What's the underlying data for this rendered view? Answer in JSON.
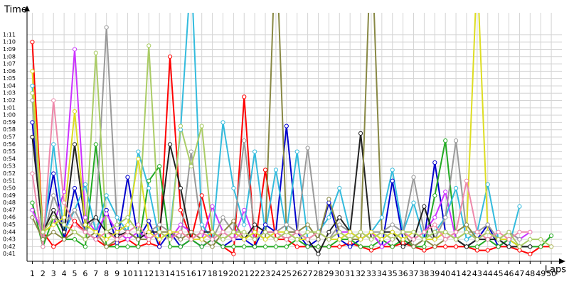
{
  "chart_data": {
    "type": "line",
    "y_label": "Time",
    "x_label": "Laps",
    "grid": true,
    "x": [
      1,
      2,
      3,
      4,
      5,
      6,
      7,
      8,
      9,
      10,
      11,
      12,
      13,
      14,
      15,
      16,
      17,
      18,
      19,
      20,
      21,
      22,
      23,
      24,
      25,
      26,
      27,
      28,
      29,
      30,
      31,
      32,
      33,
      34,
      35,
      36,
      37,
      38,
      39,
      40,
      41,
      42,
      43,
      44,
      45,
      46,
      47,
      48,
      49,
      50
    ],
    "xlim": [
      0.5,
      51
    ],
    "xticks": [
      1,
      2,
      3,
      4,
      5,
      6,
      7,
      8,
      9,
      10,
      11,
      12,
      13,
      14,
      15,
      16,
      17,
      18,
      19,
      20,
      21,
      22,
      23,
      24,
      25,
      26,
      27,
      28,
      29,
      30,
      31,
      32,
      33,
      34,
      35,
      36,
      37,
      38,
      39,
      40,
      41,
      42,
      43,
      44,
      45,
      46,
      47,
      48,
      49,
      50
    ],
    "ylim": [
      40,
      74
    ],
    "yticks": [
      {
        "value": 41,
        "label": "0:41"
      },
      {
        "value": 42,
        "label": "0:42"
      },
      {
        "value": 43,
        "label": "0:43"
      },
      {
        "value": 44,
        "label": "0:44"
      },
      {
        "value": 45,
        "label": "0:45"
      },
      {
        "value": 46,
        "label": "0:46"
      },
      {
        "value": 47,
        "label": "0:47"
      },
      {
        "value": 48,
        "label": "0:48"
      },
      {
        "value": 49,
        "label": "0:49"
      },
      {
        "value": 50,
        "label": "0:50"
      },
      {
        "value": 51,
        "label": "0:51"
      },
      {
        "value": 52,
        "label": "0:52"
      },
      {
        "value": 53,
        "label": "0:53"
      },
      {
        "value": 54,
        "label": "0:54"
      },
      {
        "value": 55,
        "label": "0:55"
      },
      {
        "value": 56,
        "label": "0:56"
      },
      {
        "value": 57,
        "label": "0:57"
      },
      {
        "value": 58,
        "label": "0:58"
      },
      {
        "value": 59,
        "label": "0:59"
      },
      {
        "value": 60,
        "label": "1:00"
      },
      {
        "value": 61,
        "label": "1:01"
      },
      {
        "value": 62,
        "label": "1:02"
      },
      {
        "value": 63,
        "label": "1:03"
      },
      {
        "value": 64,
        "label": "1:04"
      },
      {
        "value": 65,
        "label": "1:05"
      },
      {
        "value": 66,
        "label": "1:06"
      },
      {
        "value": 67,
        "label": "1:07"
      },
      {
        "value": 68,
        "label": "1:08"
      },
      {
        "value": 69,
        "label": "1:09"
      },
      {
        "value": 70,
        "label": "1:10"
      },
      {
        "value": 71,
        "label": "1:11"
      }
    ],
    "series": [
      {
        "color": "#ff0000",
        "values": [
          70,
          44,
          42,
          43,
          45.5,
          44,
          43,
          42,
          42.5,
          43,
          42,
          42.5,
          42,
          68,
          47,
          43,
          49,
          43,
          42,
          41,
          62.5,
          42,
          52.5,
          43,
          43,
          42,
          42,
          42,
          42,
          42,
          42.5,
          42,
          41.5,
          42,
          42,
          42.5,
          42,
          41.5,
          42,
          42,
          42,
          42,
          41.5,
          41.5,
          42,
          42,
          41.5,
          41,
          42,
          42
        ]
      },
      {
        "color": "#0000cc",
        "values": [
          59,
          44,
          52,
          43,
          50,
          44,
          43,
          47,
          42.5,
          51.5,
          43,
          45.5,
          42,
          44,
          42,
          43,
          42,
          43,
          42,
          43,
          43,
          42,
          45,
          44,
          58.5,
          44,
          42,
          43,
          48,
          43,
          42,
          43,
          44,
          42,
          51,
          43,
          42,
          43,
          53.5,
          44,
          43,
          42,
          43,
          45,
          42,
          43,
          42,
          42,
          null,
          null
        ]
      },
      {
        "color": "#22aa22",
        "values": [
          48,
          42,
          46,
          43,
          43,
          42,
          56,
          42,
          42,
          42,
          42,
          51,
          53,
          42,
          42,
          43,
          42,
          43,
          42,
          42,
          42,
          42,
          42,
          42,
          42,
          43,
          42,
          42,
          42,
          43,
          43,
          42,
          42,
          43,
          42,
          43,
          42,
          42,
          49,
          56.5,
          43,
          42,
          42,
          43,
          42,
          43,
          42,
          42,
          42,
          43.5
        ]
      },
      {
        "color": "#cc33ff",
        "values": [
          47,
          44,
          45,
          49.5,
          69,
          46,
          44,
          46.5,
          44,
          43,
          44,
          43,
          44,
          43,
          45,
          44,
          43,
          47.5,
          44,
          43,
          47,
          43,
          44,
          43,
          44,
          44,
          43,
          44,
          43,
          44,
          44,
          43,
          44,
          42,
          43,
          44,
          43,
          44,
          46,
          49.5,
          43,
          44,
          43,
          44,
          43,
          44,
          43,
          44,
          null,
          null
        ]
      },
      {
        "color": "#33bbdd",
        "values": [
          64,
          42,
          56,
          44,
          47,
          50.5,
          44,
          49,
          46,
          44,
          55,
          50,
          43,
          44,
          58,
          80,
          45,
          43,
          59,
          50,
          45,
          55,
          44,
          52.5,
          44,
          55,
          43,
          44,
          46,
          50,
          44,
          43,
          44,
          46,
          52.5,
          44,
          48,
          43,
          44,
          46,
          50,
          43,
          44,
          50.5,
          43,
          42,
          47.5,
          null,
          null,
          null
        ]
      },
      {
        "color": "#999999",
        "values": [
          62,
          43,
          49,
          45,
          47,
          44,
          46,
          72,
          45,
          44,
          43,
          44,
          45,
          44,
          43,
          55,
          44,
          43,
          46,
          44,
          56.5,
          44,
          43,
          44,
          45,
          44,
          55.5,
          44,
          43,
          45,
          44,
          43,
          44,
          44,
          45,
          44,
          51.5,
          44,
          43,
          46,
          56.5,
          44,
          44,
          45,
          43,
          44,
          43,
          null,
          null,
          null
        ]
      },
      {
        "color": "#222222",
        "values": [
          57,
          44,
          47,
          44,
          56,
          45,
          46,
          44,
          43.5,
          44,
          43,
          44,
          44,
          56,
          50,
          43,
          44,
          44,
          43,
          44,
          43,
          45,
          44,
          44,
          43,
          44,
          43,
          41,
          44,
          46,
          44,
          57.5,
          43,
          44,
          44,
          42,
          43,
          47.5,
          43,
          44,
          43,
          42,
          43,
          43,
          43,
          42,
          42,
          42,
          null,
          null
        ]
      },
      {
        "color": "#888844",
        "values": [
          46,
          43,
          44,
          43,
          44,
          43,
          44,
          42,
          43,
          44,
          43,
          43,
          44,
          44,
          43,
          44,
          43,
          42,
          44,
          45.5,
          43,
          44,
          43,
          85,
          44,
          44,
          45,
          43,
          48.5,
          44,
          43,
          43,
          85,
          44,
          43,
          44,
          42,
          43,
          42,
          43,
          44,
          45,
          43,
          44,
          43,
          43,
          null,
          null,
          null,
          null
        ]
      },
      {
        "color": "#dddd22",
        "values": [
          66,
          44,
          45,
          46,
          60.5,
          45,
          44,
          43,
          44,
          45,
          54,
          44,
          43,
          44,
          44,
          43,
          43,
          44,
          43,
          44,
          43,
          44,
          43,
          44,
          44,
          43,
          43,
          44,
          43,
          43,
          44,
          43,
          44,
          43,
          44,
          43,
          44,
          43,
          43,
          44,
          43,
          44,
          80,
          44,
          43,
          43,
          42,
          null,
          null,
          null
        ]
      },
      {
        "color": "#ee88aa",
        "values": [
          52,
          42,
          62,
          48,
          45,
          44,
          43,
          44,
          43,
          44,
          45,
          43,
          44,
          43,
          44,
          43,
          44,
          43,
          44,
          43,
          44,
          43,
          44,
          44,
          43,
          44,
          43,
          44,
          43,
          44,
          43,
          44,
          43,
          44,
          43,
          44,
          43,
          44,
          45,
          43,
          44,
          51,
          44,
          43,
          44,
          43,
          44,
          44,
          null,
          null
        ]
      },
      {
        "color": "#aacc66",
        "values": [
          63,
          44,
          46,
          45,
          44,
          43,
          68.5,
          44,
          45,
          46,
          44,
          69.5,
          44,
          43,
          58.5,
          53,
          58.5,
          44,
          43,
          44,
          44,
          43,
          44,
          43,
          44,
          43,
          44,
          44,
          43,
          44,
          43,
          44,
          43,
          44,
          43,
          44,
          44,
          43,
          44,
          44,
          43,
          44,
          43,
          44,
          43,
          44,
          42,
          43,
          43,
          42
        ]
      }
    ]
  }
}
